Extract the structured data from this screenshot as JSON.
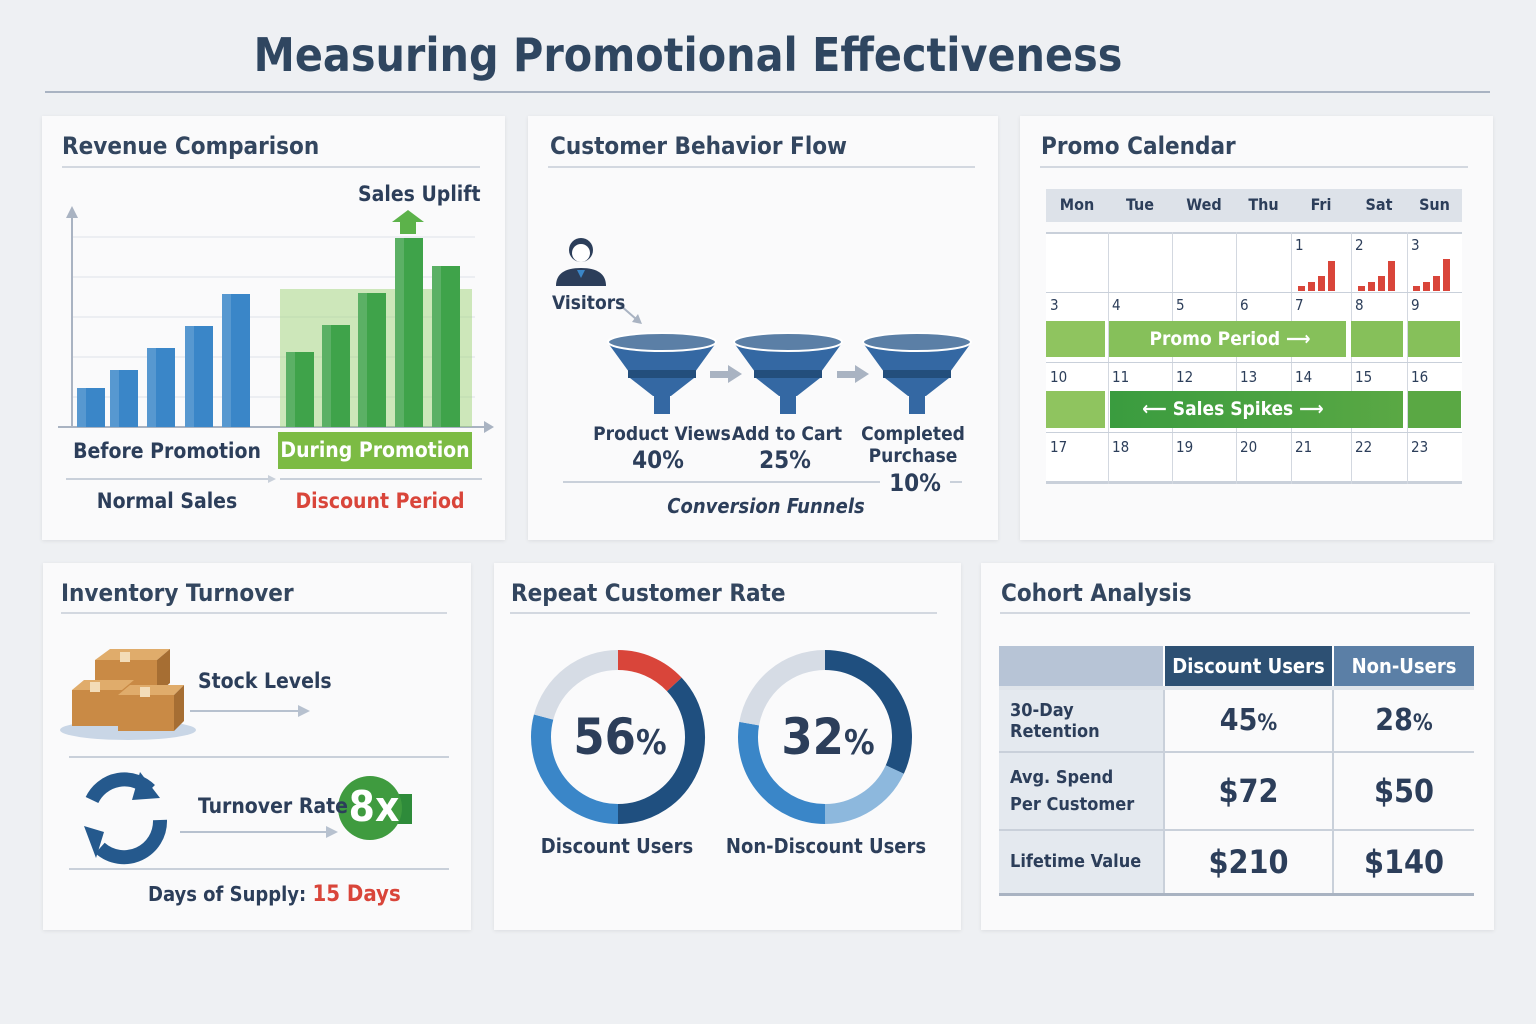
{
  "title": "Measuring Promotional Effectiveness",
  "colors": {
    "navy": "#1f4f7f",
    "blue": "#3a86c8",
    "green": "#43a047",
    "lightgreen": "#8bc34a",
    "red": "#d9453a",
    "text": "#2c3e5a"
  },
  "revenue": {
    "title": "Revenue Comparison",
    "uplift_label": "Sales Uplift",
    "before_label": "Before Promotion",
    "during_label": "During Promotion",
    "normal_label": "Normal Sales",
    "discount_label": "Discount Period"
  },
  "chart_data": {
    "type": "bar",
    "series": [
      {
        "name": "Before Promotion",
        "values": [
          39,
          57,
          79,
          101,
          133
        ]
      },
      {
        "name": "During Promotion",
        "values": [
          75,
          102,
          134,
          189,
          161
        ]
      }
    ]
  },
  "flow": {
    "title": "Customer Behavior Flow",
    "visitors": "Visitors",
    "stages": [
      {
        "label": "Product Views",
        "value": "40%"
      },
      {
        "label": "Add to Cart",
        "value": "25%"
      },
      {
        "label1": "Completed",
        "label2": "Purchase",
        "value": "10%"
      }
    ],
    "footer": "Conversion Funnels"
  },
  "calendar": {
    "title": "Promo Calendar",
    "days": [
      "Mon",
      "Tue",
      "Wed",
      "Thu",
      "Fri",
      "Sat",
      "Sun"
    ],
    "rows": [
      [
        "",
        "",
        "",
        "",
        "1",
        "2",
        "3"
      ],
      [
        "3",
        "4",
        "5",
        "6",
        "7",
        "8",
        "9"
      ],
      [
        "10",
        "11",
        "12",
        "13",
        "14",
        "15",
        "16"
      ],
      [
        "17",
        "18",
        "19",
        "20",
        "21",
        "22",
        "23"
      ]
    ],
    "promo_label": "Promo Period",
    "spikes_label": "Sales Spikes"
  },
  "inventory": {
    "title": "Inventory Turnover",
    "stock_label": "Stock Levels",
    "turnover_label": "Turnover Rate",
    "turnover_value": "8x",
    "supply_label": "Days of Supply:",
    "supply_value": "15 Days"
  },
  "repeat": {
    "title": "Repeat Customer Rate",
    "donuts": [
      {
        "value": "56",
        "pct": "%",
        "label": "Discount Users"
      },
      {
        "value": "32",
        "pct": "%",
        "label": "Non-Discount Users"
      }
    ]
  },
  "cohort": {
    "title": "Cohort Analysis",
    "headers": [
      "",
      "Discount Users",
      "Non-Users"
    ],
    "rows": [
      {
        "metric": "30-Day Retention",
        "a": "45",
        "a_unit": "%",
        "b": "28",
        "b_unit": "%"
      },
      {
        "metric1": "Avg. Spend",
        "metric2": "Per Customer",
        "a": "$72",
        "b": "$50"
      },
      {
        "metric": "Lifetime Value",
        "a": "$210",
        "b": "$140"
      }
    ]
  }
}
